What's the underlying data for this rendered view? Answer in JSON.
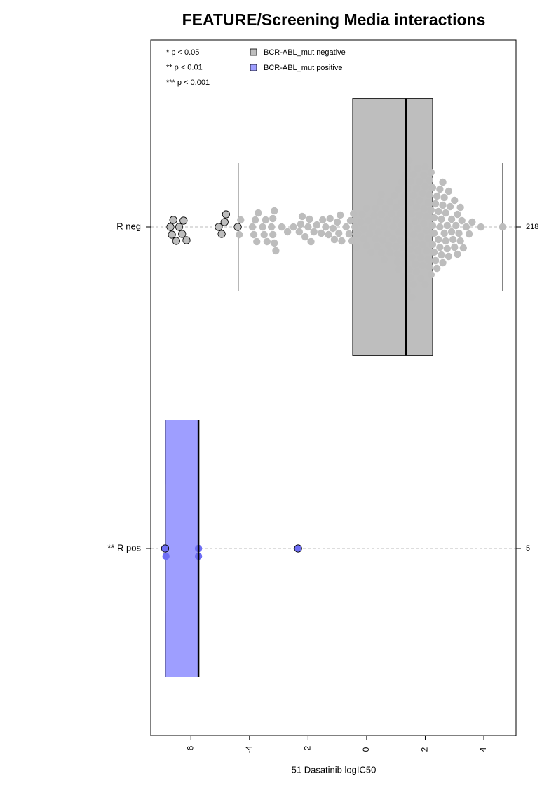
{
  "chart_data": {
    "type": "boxplot",
    "title": "FEATURE/Screening Media interactions",
    "xlabel": "51 Dasatinib logIC50",
    "xlim": [
      -7.37,
      5.1
    ],
    "xticks": [
      -6,
      -4,
      -2,
      0,
      2,
      4
    ],
    "categories": [
      "R neg",
      "** R pos"
    ],
    "notes": [
      "* p < 0.05",
      "** p < 0.01",
      "*** p < 0.001"
    ],
    "series": [
      {
        "name": "BCR-ABL_mut negative",
        "color": "#bebebe",
        "point_color": "#bdbdbd",
        "n": 218,
        "whislo": -4.38,
        "q1": -0.48,
        "med": 1.34,
        "q3": 2.25,
        "whishi": 4.64,
        "points": [
          -6.7,
          -6.65,
          -6.6,
          -6.5,
          -6.4,
          -6.3,
          -6.25,
          -6.15,
          -5.05,
          -4.95,
          -4.85,
          -4.8,
          -4.4,
          -4.35,
          -4.3,
          -3.9,
          -3.85,
          -3.8,
          -3.75,
          -3.7,
          -3.55,
          -3.5,
          -3.45,
          -3.4,
          -3.25,
          -3.2,
          -3.2,
          -3.15,
          -3.15,
          -3.1,
          -2.9,
          -2.7,
          -2.5,
          -2.3,
          -2.25,
          -2.2,
          -2.1,
          -2.0,
          -1.95,
          -1.9,
          -1.8,
          -1.7,
          -1.55,
          -1.5,
          -1.4,
          -1.3,
          -1.25,
          -1.15,
          -1.1,
          -1.0,
          -0.95,
          -0.9,
          -0.85,
          -0.7,
          -0.6,
          -0.55,
          -0.5,
          -0.45,
          -0.4,
          -0.35,
          -0.2,
          -0.15,
          -0.1,
          0.0,
          0.0,
          0.05,
          0.1,
          0.2,
          0.25,
          0.3,
          0.35,
          0.4,
          0.45,
          0.5,
          0.5,
          0.55,
          0.6,
          0.65,
          0.7,
          0.75,
          0.8,
          0.85,
          0.9,
          0.95,
          1.0,
          1.0,
          1.05,
          1.1,
          1.1,
          1.15,
          1.2,
          1.2,
          1.25,
          1.25,
          1.3,
          1.3,
          1.3,
          1.35,
          1.35,
          1.4,
          1.4,
          1.45,
          1.45,
          1.5,
          1.5,
          1.55,
          1.55,
          1.6,
          1.6,
          1.65,
          1.65,
          1.7,
          1.7,
          1.75,
          1.75,
          1.8,
          1.8,
          1.85,
          1.85,
          1.9,
          1.9,
          1.95,
          1.95,
          2.0,
          2.0,
          2.05,
          2.05,
          2.1,
          2.1,
          2.15,
          2.15,
          2.2,
          2.2,
          2.25,
          2.25,
          2.3,
          2.3,
          2.35,
          2.4,
          2.45,
          2.5,
          2.5,
          2.55,
          2.6,
          2.6,
          2.65,
          2.7,
          2.75,
          2.8,
          2.85,
          2.9,
          2.95,
          3.0,
          3.05,
          3.1,
          3.15,
          3.2,
          3.25,
          3.3,
          3.4,
          3.5,
          3.6,
          3.9,
          4.64,
          1.0,
          1.05,
          1.1,
          1.15,
          1.2,
          1.3,
          1.35,
          1.4,
          1.45,
          1.5,
          1.55,
          1.6,
          1.65,
          1.7,
          1.75,
          1.8,
          1.85,
          1.9,
          1.95,
          2.0,
          2.05,
          2.1,
          2.15,
          2.2,
          2.25,
          2.3,
          2.35,
          2.4,
          2.45,
          2.5,
          2.55,
          2.6,
          2.65,
          2.7,
          2.75,
          2.8,
          2.9,
          3.0,
          3.1,
          3.2,
          0.3,
          0.4,
          0.5,
          0.6,
          0.7,
          0.8,
          0.9,
          -0.3,
          -0.1,
          0.15,
          1.3,
          1.4,
          1.5,
          1.6
        ]
      },
      {
        "name": "BCR-ABL_mut positive",
        "color": "#9e9eff",
        "point_color": "#6e6ef5",
        "n": 5,
        "whislo": -6.87,
        "q1": -6.87,
        "med": -5.74,
        "q3": -5.74,
        "whishi": -5.74,
        "points": [
          -6.85,
          -6.88,
          -5.74,
          -5.74,
          -2.34
        ]
      }
    ]
  }
}
